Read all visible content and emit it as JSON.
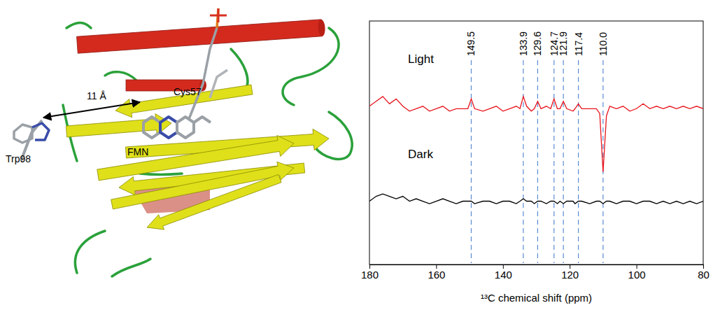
{
  "chart_data": {
    "type": "line",
    "x_label": "¹³C chemical shift (ppm)",
    "xlim": [
      180,
      80
    ],
    "xticks": [
      180,
      160,
      140,
      120,
      100,
      80
    ],
    "ylim": [
      0,
      10
    ],
    "tick_labels": "x",
    "x": [
      180,
      178,
      176,
      174,
      172,
      170,
      168,
      166,
      164,
      162,
      160,
      158,
      156,
      154,
      152,
      150.5,
      149.5,
      148.5,
      146,
      144,
      142,
      140,
      138,
      136,
      134.9,
      133.9,
      132.9,
      131.5,
      130.6,
      129.6,
      128.6,
      127,
      125.7,
      124.7,
      123.7,
      122.9,
      121.9,
      120.9,
      119,
      118.4,
      117.4,
      116.4,
      114,
      112,
      111,
      110,
      109,
      108,
      106,
      104,
      102,
      100,
      98,
      96,
      94,
      92,
      90,
      88,
      86,
      84,
      82,
      80
    ],
    "series": [
      {
        "name": "Light",
        "color": "#e8141c",
        "values": [
          6.5,
          6.7,
          6.9,
          6.6,
          6.8,
          6.5,
          6.3,
          6.4,
          6.5,
          6.3,
          6.4,
          6.5,
          6.3,
          6.4,
          6.4,
          6.4,
          6.8,
          6.4,
          6.3,
          6.4,
          6.5,
          6.3,
          6.4,
          6.5,
          6.4,
          6.9,
          6.5,
          6.3,
          6.4,
          6.7,
          6.4,
          6.5,
          6.4,
          6.8,
          6.4,
          6.4,
          6.7,
          6.4,
          6.3,
          6.4,
          6.6,
          6.4,
          6.4,
          6.4,
          6.2,
          3.8,
          6.1,
          6.5,
          6.4,
          6.5,
          6.3,
          6.4,
          6.6,
          6.4,
          6.5,
          6.4,
          6.5,
          6.4,
          6.5,
          6.4,
          6.5,
          6.4
        ]
      },
      {
        "name": "Dark",
        "color": "#000000",
        "values": [
          2.6,
          2.8,
          2.9,
          2.8,
          2.7,
          2.8,
          2.6,
          2.7,
          2.6,
          2.5,
          2.6,
          2.7,
          2.6,
          2.5,
          2.6,
          2.6,
          2.6,
          2.5,
          2.6,
          2.6,
          2.5,
          2.6,
          2.6,
          2.5,
          2.6,
          2.7,
          2.6,
          2.6,
          2.5,
          2.6,
          2.6,
          2.5,
          2.6,
          2.6,
          2.5,
          2.6,
          2.5,
          2.6,
          2.6,
          2.5,
          2.6,
          2.6,
          2.5,
          2.6,
          2.6,
          2.5,
          2.6,
          2.6,
          2.5,
          2.6,
          2.6,
          2.5,
          2.6,
          2.6,
          2.5,
          2.6,
          2.5,
          2.6,
          2.5,
          2.6,
          2.5,
          2.6
        ]
      }
    ],
    "peaks": [
      {
        "value": 149.5,
        "label": "149.5"
      },
      {
        "value": 133.9,
        "label": "133.9"
      },
      {
        "value": 129.6,
        "label": "129.6"
      },
      {
        "value": 124.7,
        "label": "124.7"
      },
      {
        "value": 121.9,
        "label": "121.9"
      },
      {
        "value": 117.4,
        "label": "117.4"
      },
      {
        "value": 110,
        "label": "110.0"
      }
    ]
  },
  "structure": {
    "labels": [
      "Trp98",
      "11 Å",
      "FMN",
      "Cys57"
    ]
  }
}
